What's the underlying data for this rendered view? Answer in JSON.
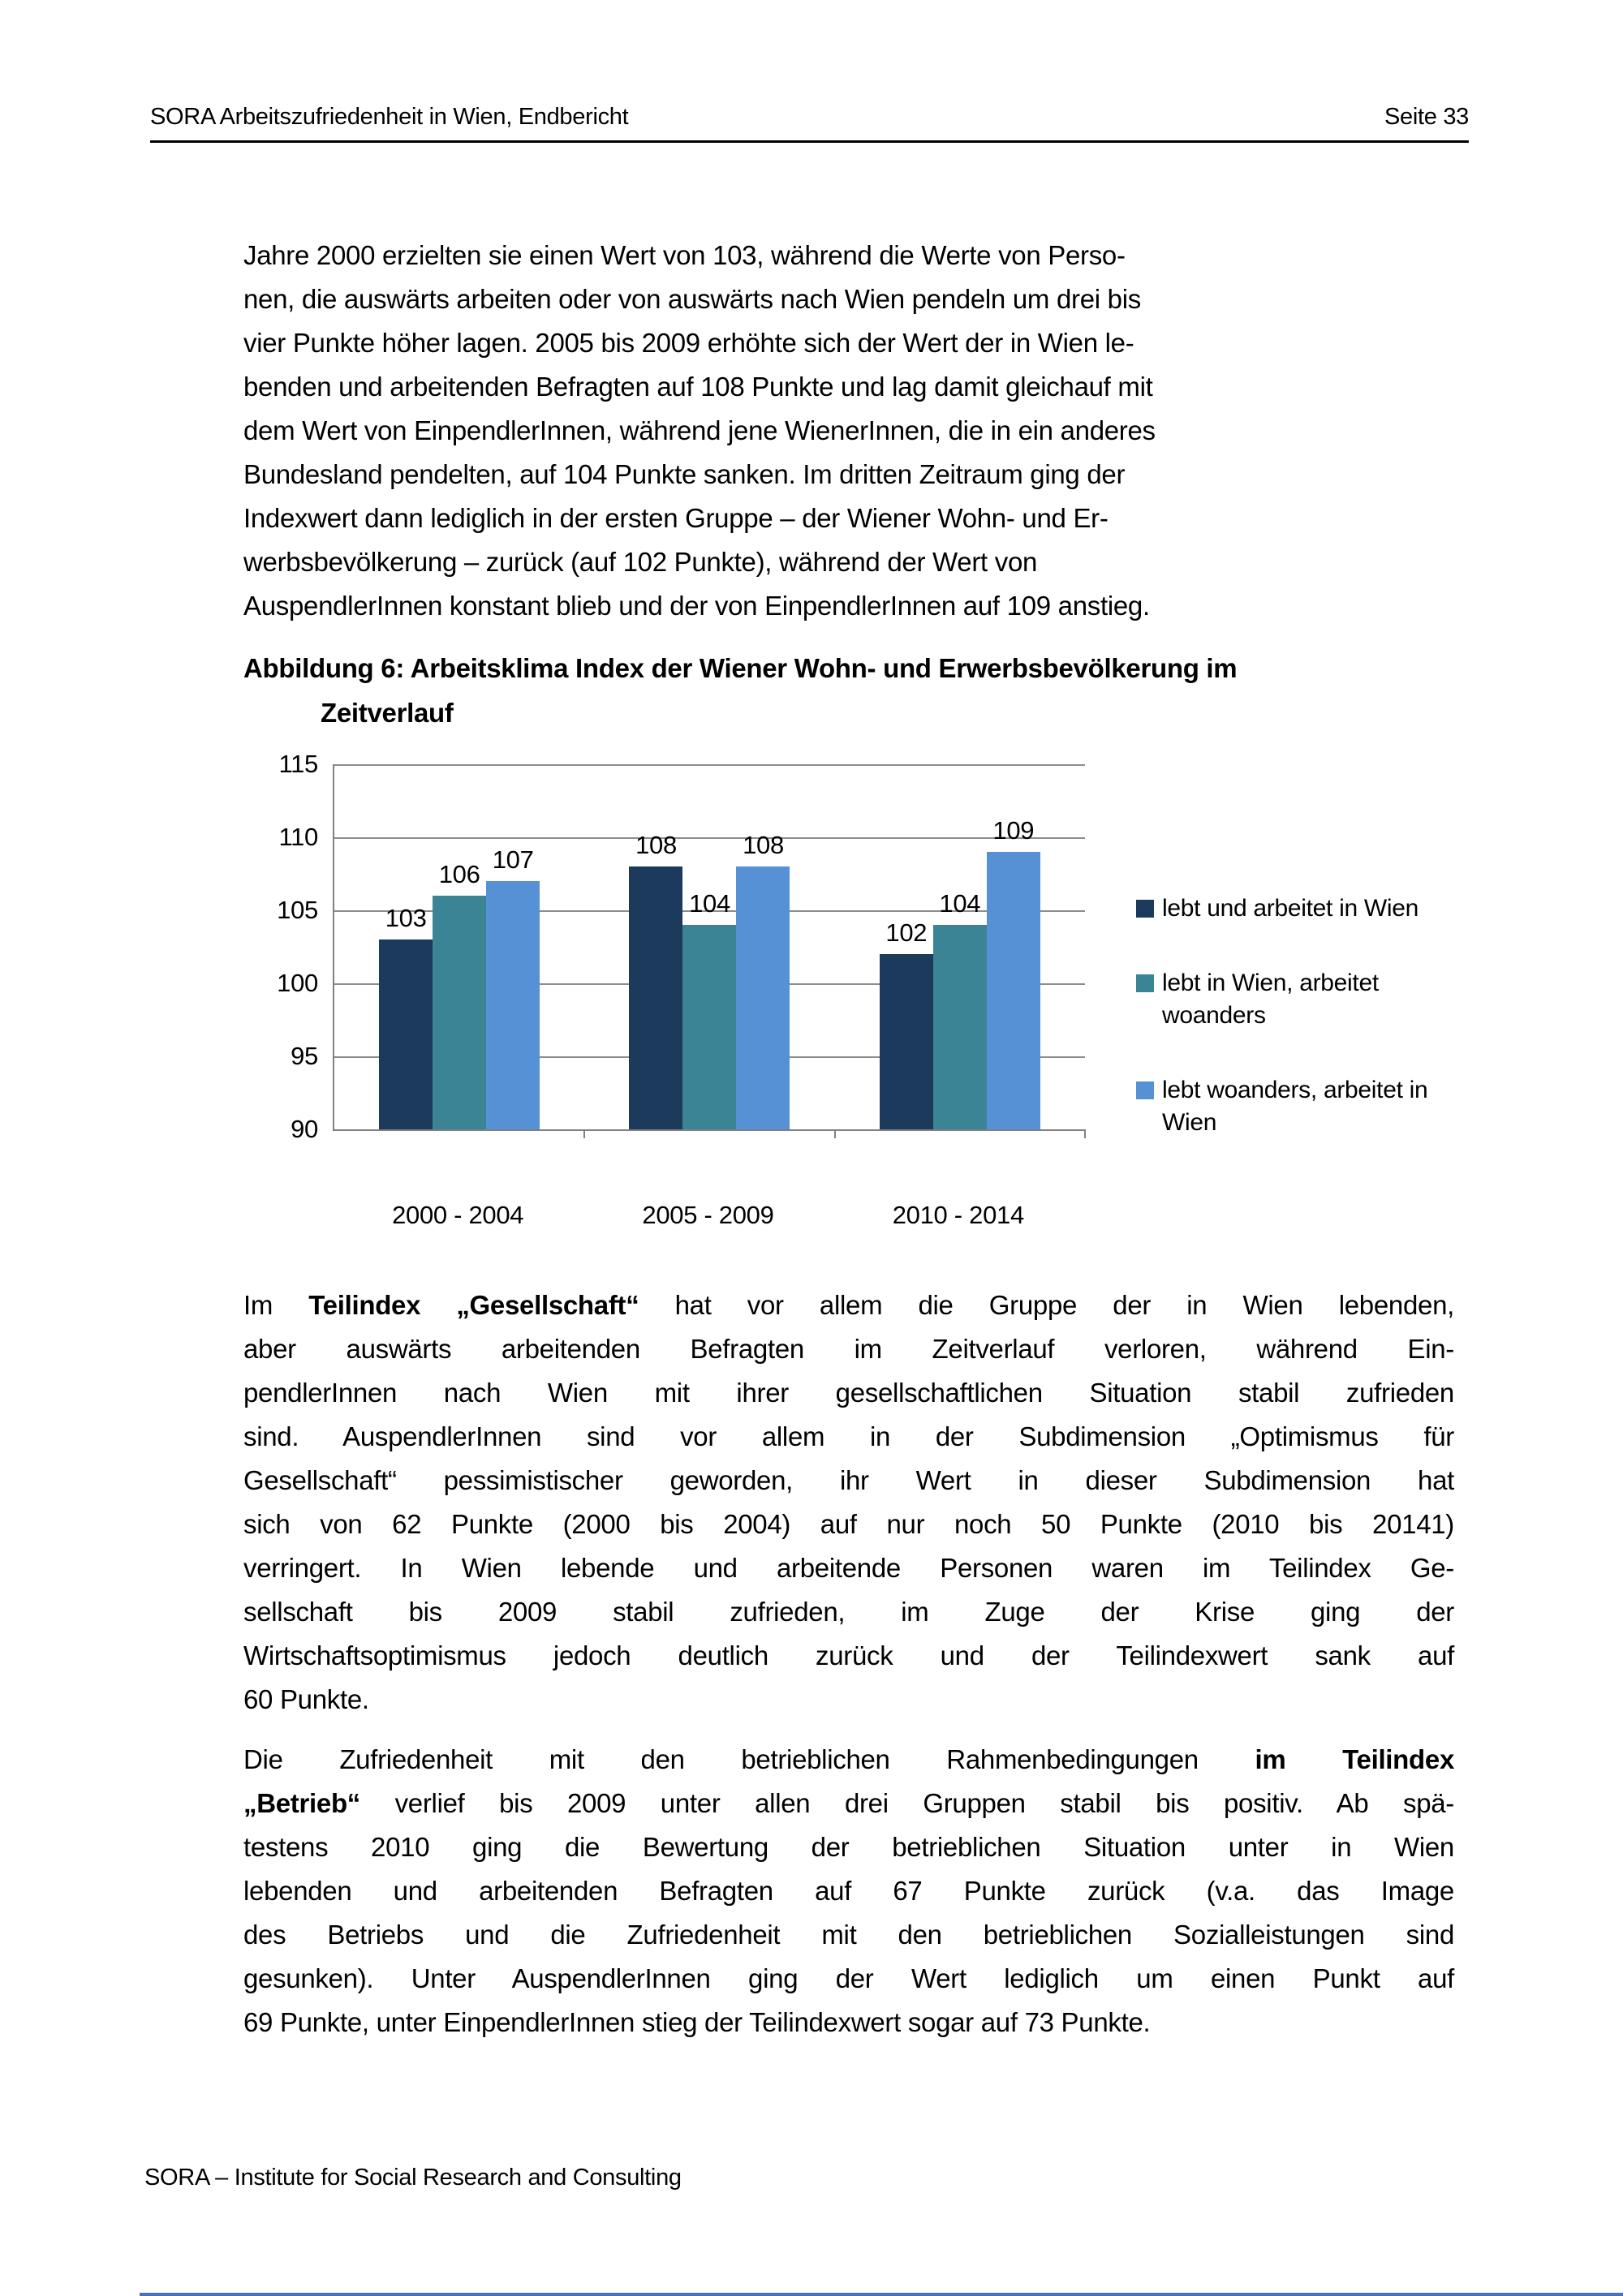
{
  "header": {
    "title": "SORA Arbeitszufriedenheit in Wien, Endbericht",
    "page_label": "Seite 33"
  },
  "paragraphs": [
    {
      "align": "left",
      "lines": [
        [
          {
            "t": "Jahre 2000 erzielten sie einen Wert von 103, während die Werte von Perso-"
          }
        ],
        [
          {
            "t": "nen, die auswärts arbeiten oder von auswärts nach Wien pendeln um drei bis"
          }
        ],
        [
          {
            "t": "vier Punkte höher lagen. 2005 bis 2009 erhöhte sich der Wert der in Wien le-"
          }
        ],
        [
          {
            "t": "benden und arbeitenden Befragten auf 108 Punkte und lag damit gleichauf mit"
          }
        ],
        [
          {
            "t": "dem Wert von EinpendlerInnen, während jene WienerInnen, die in ein anderes"
          }
        ],
        [
          {
            "t": "Bundesland pendelten, auf 104 Punkte sanken. Im dritten Zeitraum ging der"
          }
        ],
        [
          {
            "t": "Indexwert dann lediglich in der ersten Gruppe – der Wiener Wohn- und Er-"
          }
        ],
        [
          {
            "t": "werbsbevölkerung – zurück (auf 102 Punkte), während der Wert von"
          }
        ],
        [
          {
            "t": "AuspendlerInnen konstant blieb und der von EinpendlerInnen auf 109 anstieg."
          }
        ]
      ]
    },
    {
      "align": "justify",
      "lines": [
        [
          {
            "t": "Im "
          },
          {
            "t": "Teilindex „Gesellschaft“",
            "b": true
          },
          {
            "t": " hat vor allem die Gruppe der in Wien lebenden,"
          }
        ],
        [
          {
            "t": "aber auswärts arbeitenden Befragten im Zeitverlauf verloren, während Ein-"
          }
        ],
        [
          {
            "t": "pendlerInnen nach Wien mit ihrer gesellschaftlichen Situation stabil zufrieden"
          }
        ],
        [
          {
            "t": "sind. AuspendlerInnen sind vor allem in der Subdimension „Optimismus für"
          }
        ],
        [
          {
            "t": "Gesellschaft“ pessimistischer geworden, ihr Wert in dieser Subdimension hat"
          }
        ],
        [
          {
            "t": "sich von 62 Punkte (2000 bis 2004) auf nur noch 50 Punkte (2010 bis 20141)"
          }
        ],
        [
          {
            "t": "verringert. In Wien lebende und arbeitende Personen waren im Teilindex Ge-"
          }
        ],
        [
          {
            "t": "sellschaft bis 2009 stabil zufrieden, im Zuge der Krise ging der"
          }
        ],
        [
          {
            "t": "Wirtschaftsoptimismus jedoch deutlich zurück und der Teilindexwert sank auf"
          }
        ],
        [
          {
            "t": "60 Punkte."
          }
        ]
      ]
    },
    {
      "align": "justify",
      "lines": [
        [
          {
            "t": "Die Zufriedenheit mit den betrieblichen Rahmenbedingungen "
          },
          {
            "t": "im Teilindex",
            "b": true
          }
        ],
        [
          {
            "t": "„Betrieb“",
            "b": true
          },
          {
            "t": " verlief bis 2009 unter allen drei Gruppen stabil bis positiv. Ab spä-"
          }
        ],
        [
          {
            "t": "testens 2010 ging die Bewertung der betrieblichen Situation unter in Wien"
          }
        ],
        [
          {
            "t": "lebenden und arbeitenden Befragten auf 67 Punkte zurück (v.a. das Image"
          }
        ],
        [
          {
            "t": "des Betriebs und die Zufriedenheit mit den betrieblichen Sozialleistungen sind"
          }
        ],
        [
          {
            "t": "gesunken). Unter AuspendlerInnen ging der Wert lediglich um einen Punkt auf"
          }
        ],
        [
          {
            "t": "69 Punkte, unter EinpendlerInnen stieg der Teilindexwert sogar auf 73 Punkte."
          }
        ]
      ]
    }
  ],
  "caption": {
    "line1": "Abbildung 6: Arbeitsklima Index der Wiener Wohn- und Erwerbsbevölkerung im",
    "line2": "Zeitverlauf"
  },
  "chart_data": {
    "type": "bar",
    "title": "Abbildung 6: Arbeitsklima Index der Wiener Wohn- und Erwerbsbevölkerung im Zeitverlauf",
    "categories": [
      "2000 - 2004",
      "2005 - 2009",
      "2010 - 2014"
    ],
    "series": [
      {
        "name": "lebt und arbeitet in Wien",
        "color": "#1B3A5C",
        "values": [
          103,
          108,
          102
        ]
      },
      {
        "name": "lebt in Wien, arbeitet woanders",
        "color": "#3A8496",
        "values": [
          106,
          104,
          104
        ]
      },
      {
        "name": "lebt woanders, arbeitet in Wien",
        "color": "#5591D4",
        "values": [
          107,
          108,
          109
        ]
      }
    ],
    "ylim": [
      90,
      115
    ],
    "yticks": [
      90,
      95,
      100,
      105,
      110,
      115
    ],
    "grid": true,
    "grid_color": "#8C8C8C",
    "axis_color": "#808080",
    "legend_position": "right",
    "value_labels": true,
    "xlabel": "",
    "ylabel": ""
  },
  "footer": {
    "text": "SORA – Institute for Social Research and Consulting"
  },
  "colors": {
    "bottom_strip": "#4472C4",
    "text": "#000000"
  }
}
